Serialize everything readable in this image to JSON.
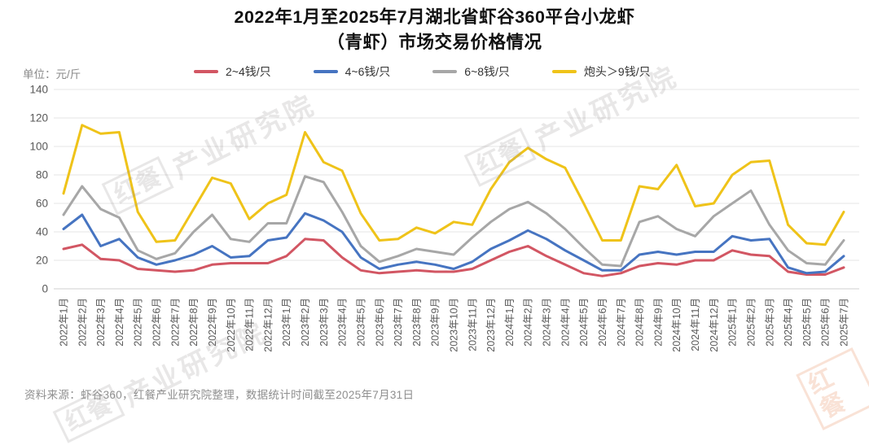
{
  "title": {
    "line1": "2022年1月至2025年7月湖北省虾谷360平台小龙虾",
    "line2": "（青虾）市场交易价格情况"
  },
  "unit_label": "单位：元/斤",
  "source_note": "资料来源：虾谷360，红餐产业研究院整理，数据统计时间截至2025年7月31日",
  "watermark": {
    "logo_text": "红餐",
    "text": "产业研究院"
  },
  "chart_data": {
    "type": "line",
    "title": "2022年1月至2025年7月湖北省虾谷360平台小龙虾（青虾）市场交易价格情况",
    "xlabel": "",
    "ylabel": "元/斤",
    "ylim": [
      0,
      140
    ],
    "ytick_step": 20,
    "grid": "horizontal",
    "legend_position": "top",
    "categories": [
      "2022年1月",
      "2022年2月",
      "2022年3月",
      "2022年4月",
      "2022年5月",
      "2022年6月",
      "2022年7月",
      "2022年8月",
      "2022年9月",
      "2022年10月",
      "2022年11月",
      "2022年12月",
      "2023年1月",
      "2023年2月",
      "2023年3月",
      "2023年4月",
      "2023年5月",
      "2023年6月",
      "2023年7月",
      "2023年8月",
      "2023年9月",
      "2023年10月",
      "2023年11月",
      "2023年12月",
      "2024年1月",
      "2024年2月",
      "2024年3月",
      "2024年4月",
      "2024年5月",
      "2024年6月",
      "2024年7月",
      "2024年8月",
      "2024年9月",
      "2024年10月",
      "2024年11月",
      "2024年12月",
      "2025年1月",
      "2025年2月",
      "2025年3月",
      "2025年4月",
      "2025年5月",
      "2025年6月",
      "2025年7月"
    ],
    "series": [
      {
        "name": "2~4钱/只",
        "color": "#d25663",
        "values": [
          28,
          31,
          21,
          20,
          14,
          13,
          12,
          13,
          17,
          18,
          18,
          18,
          23,
          35,
          34,
          22,
          13,
          11,
          12,
          13,
          12,
          12,
          14,
          20,
          26,
          30,
          23,
          17,
          11,
          9,
          11,
          16,
          18,
          17,
          20,
          20,
          27,
          24,
          23,
          12,
          10,
          10,
          15
        ]
      },
      {
        "name": "4~6钱/只",
        "color": "#4674c1",
        "values": [
          42,
          52,
          30,
          35,
          22,
          17,
          20,
          24,
          30,
          22,
          23,
          34,
          36,
          53,
          48,
          40,
          22,
          14,
          17,
          19,
          17,
          14,
          19,
          28,
          34,
          41,
          35,
          27,
          20,
          13,
          13,
          24,
          26,
          24,
          26,
          26,
          37,
          34,
          35,
          15,
          11,
          12,
          23
        ]
      },
      {
        "name": "6~8钱/只",
        "color": "#a7a7a7",
        "values": [
          52,
          72,
          56,
          50,
          27,
          21,
          25,
          40,
          52,
          35,
          33,
          46,
          46,
          79,
          75,
          54,
          30,
          19,
          23,
          28,
          26,
          24,
          36,
          47,
          56,
          61,
          53,
          42,
          29,
          17,
          16,
          47,
          51,
          42,
          37,
          51,
          60,
          69,
          45,
          27,
          18,
          17,
          34
        ]
      },
      {
        "name": "炮头＞9钱/只",
        "color": "#efc319",
        "values": [
          67,
          115,
          109,
          110,
          54,
          33,
          34,
          56,
          78,
          74,
          49,
          60,
          66,
          110,
          89,
          83,
          53,
          34,
          35,
          43,
          39,
          47,
          45,
          70,
          89,
          99,
          91,
          85,
          60,
          34,
          34,
          72,
          70,
          87,
          58,
          60,
          80,
          89,
          90,
          45,
          32,
          31,
          54
        ]
      }
    ]
  }
}
